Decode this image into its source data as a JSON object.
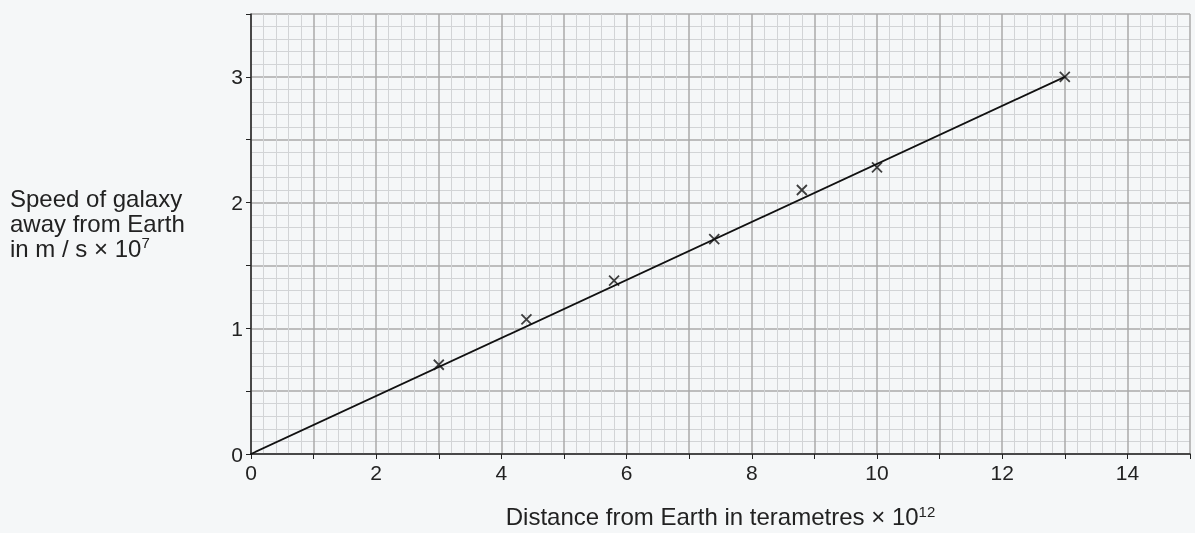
{
  "chart_data": {
    "type": "scatter",
    "xlabel": "Distance from Earth in terametres × 10$^{12}$",
    "ylabel": "Speed of galaxy\naway from Earth\nin m / s × 10$^{7}$",
    "series": [
      {
        "color": "#111111",
        "marker": "cross",
        "x": [
          3.0,
          4.4,
          5.8,
          7.4,
          8.8,
          10.0,
          13.0
        ],
        "values": [
          0.71,
          1.07,
          1.38,
          1.71,
          2.1,
          2.28,
          3.0
        ]
      },
      {
        "type": "line",
        "color": "#111111",
        "marker": "none",
        "x": [
          0,
          13
        ],
        "values": [
          0,
          3
        ]
      }
    ],
    "xlim": [
      0,
      15
    ],
    "ylim": [
      0,
      3.5
    ],
    "xticks": [
      0,
      {
        "value": 1,
        "label": null
      },
      2,
      {
        "value": 3,
        "label": null
      },
      4,
      {
        "value": 5,
        "label": null
      },
      6,
      {
        "value": 7,
        "label": null
      },
      8,
      {
        "value": 9,
        "label": null
      },
      10,
      {
        "value": 11,
        "label": null
      },
      12,
      {
        "value": 13,
        "label": null
      },
      14,
      {
        "value": 15,
        "label": null
      }
    ],
    "yticks": [
      0,
      {
        "value": 0.5,
        "label": null
      },
      1,
      {
        "value": 1.5,
        "label": null
      },
      2,
      {
        "value": 2.5,
        "label": null
      },
      3,
      {
        "value": 3.5,
        "label": null
      }
    ],
    "grid": true
  }
}
